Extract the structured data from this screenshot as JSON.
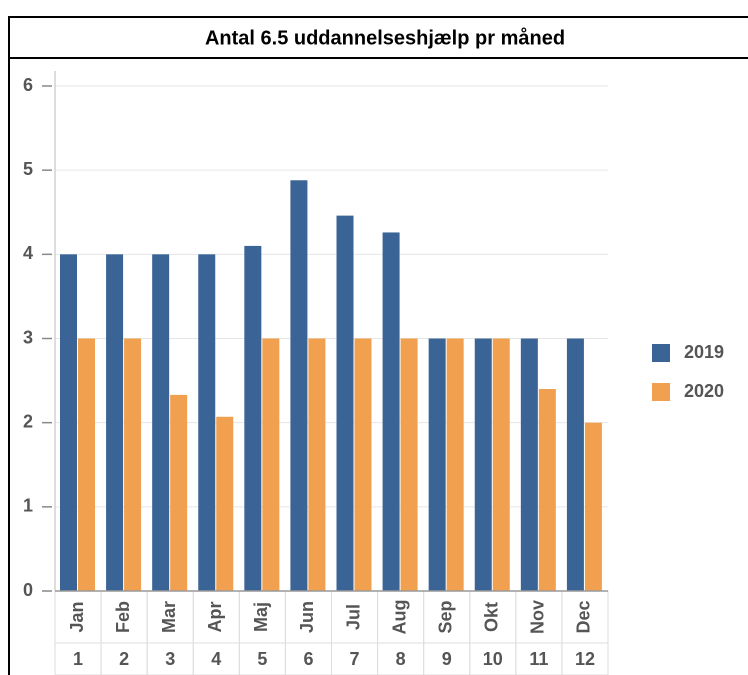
{
  "chart_data": {
    "type": "bar",
    "title": "Antal 6.5 uddannelseshjælp pr måned",
    "categories": [
      "Jan",
      "Feb",
      "Mar",
      "Apr",
      "Maj",
      "Jun",
      "Jul",
      "Aug",
      "Sep",
      "Okt",
      "Nov",
      "Dec"
    ],
    "category_numbers": [
      1,
      2,
      3,
      4,
      5,
      6,
      7,
      8,
      9,
      10,
      11,
      12
    ],
    "series": [
      {
        "name": "2019",
        "color": "#3a6496",
        "values": [
          4,
          4,
          4,
          4,
          4.1,
          4.88,
          4.46,
          4.26,
          3,
          3,
          3,
          3
        ]
      },
      {
        "name": "2020",
        "color": "#f0a04f",
        "values": [
          3,
          3,
          2.33,
          2.07,
          3,
          3,
          3,
          3,
          3,
          3,
          2.4,
          2
        ]
      }
    ],
    "ylim": [
      0,
      6
    ],
    "yticks": [
      0,
      1,
      2,
      3,
      4,
      5,
      6
    ],
    "grid": true,
    "legend": "right"
  }
}
